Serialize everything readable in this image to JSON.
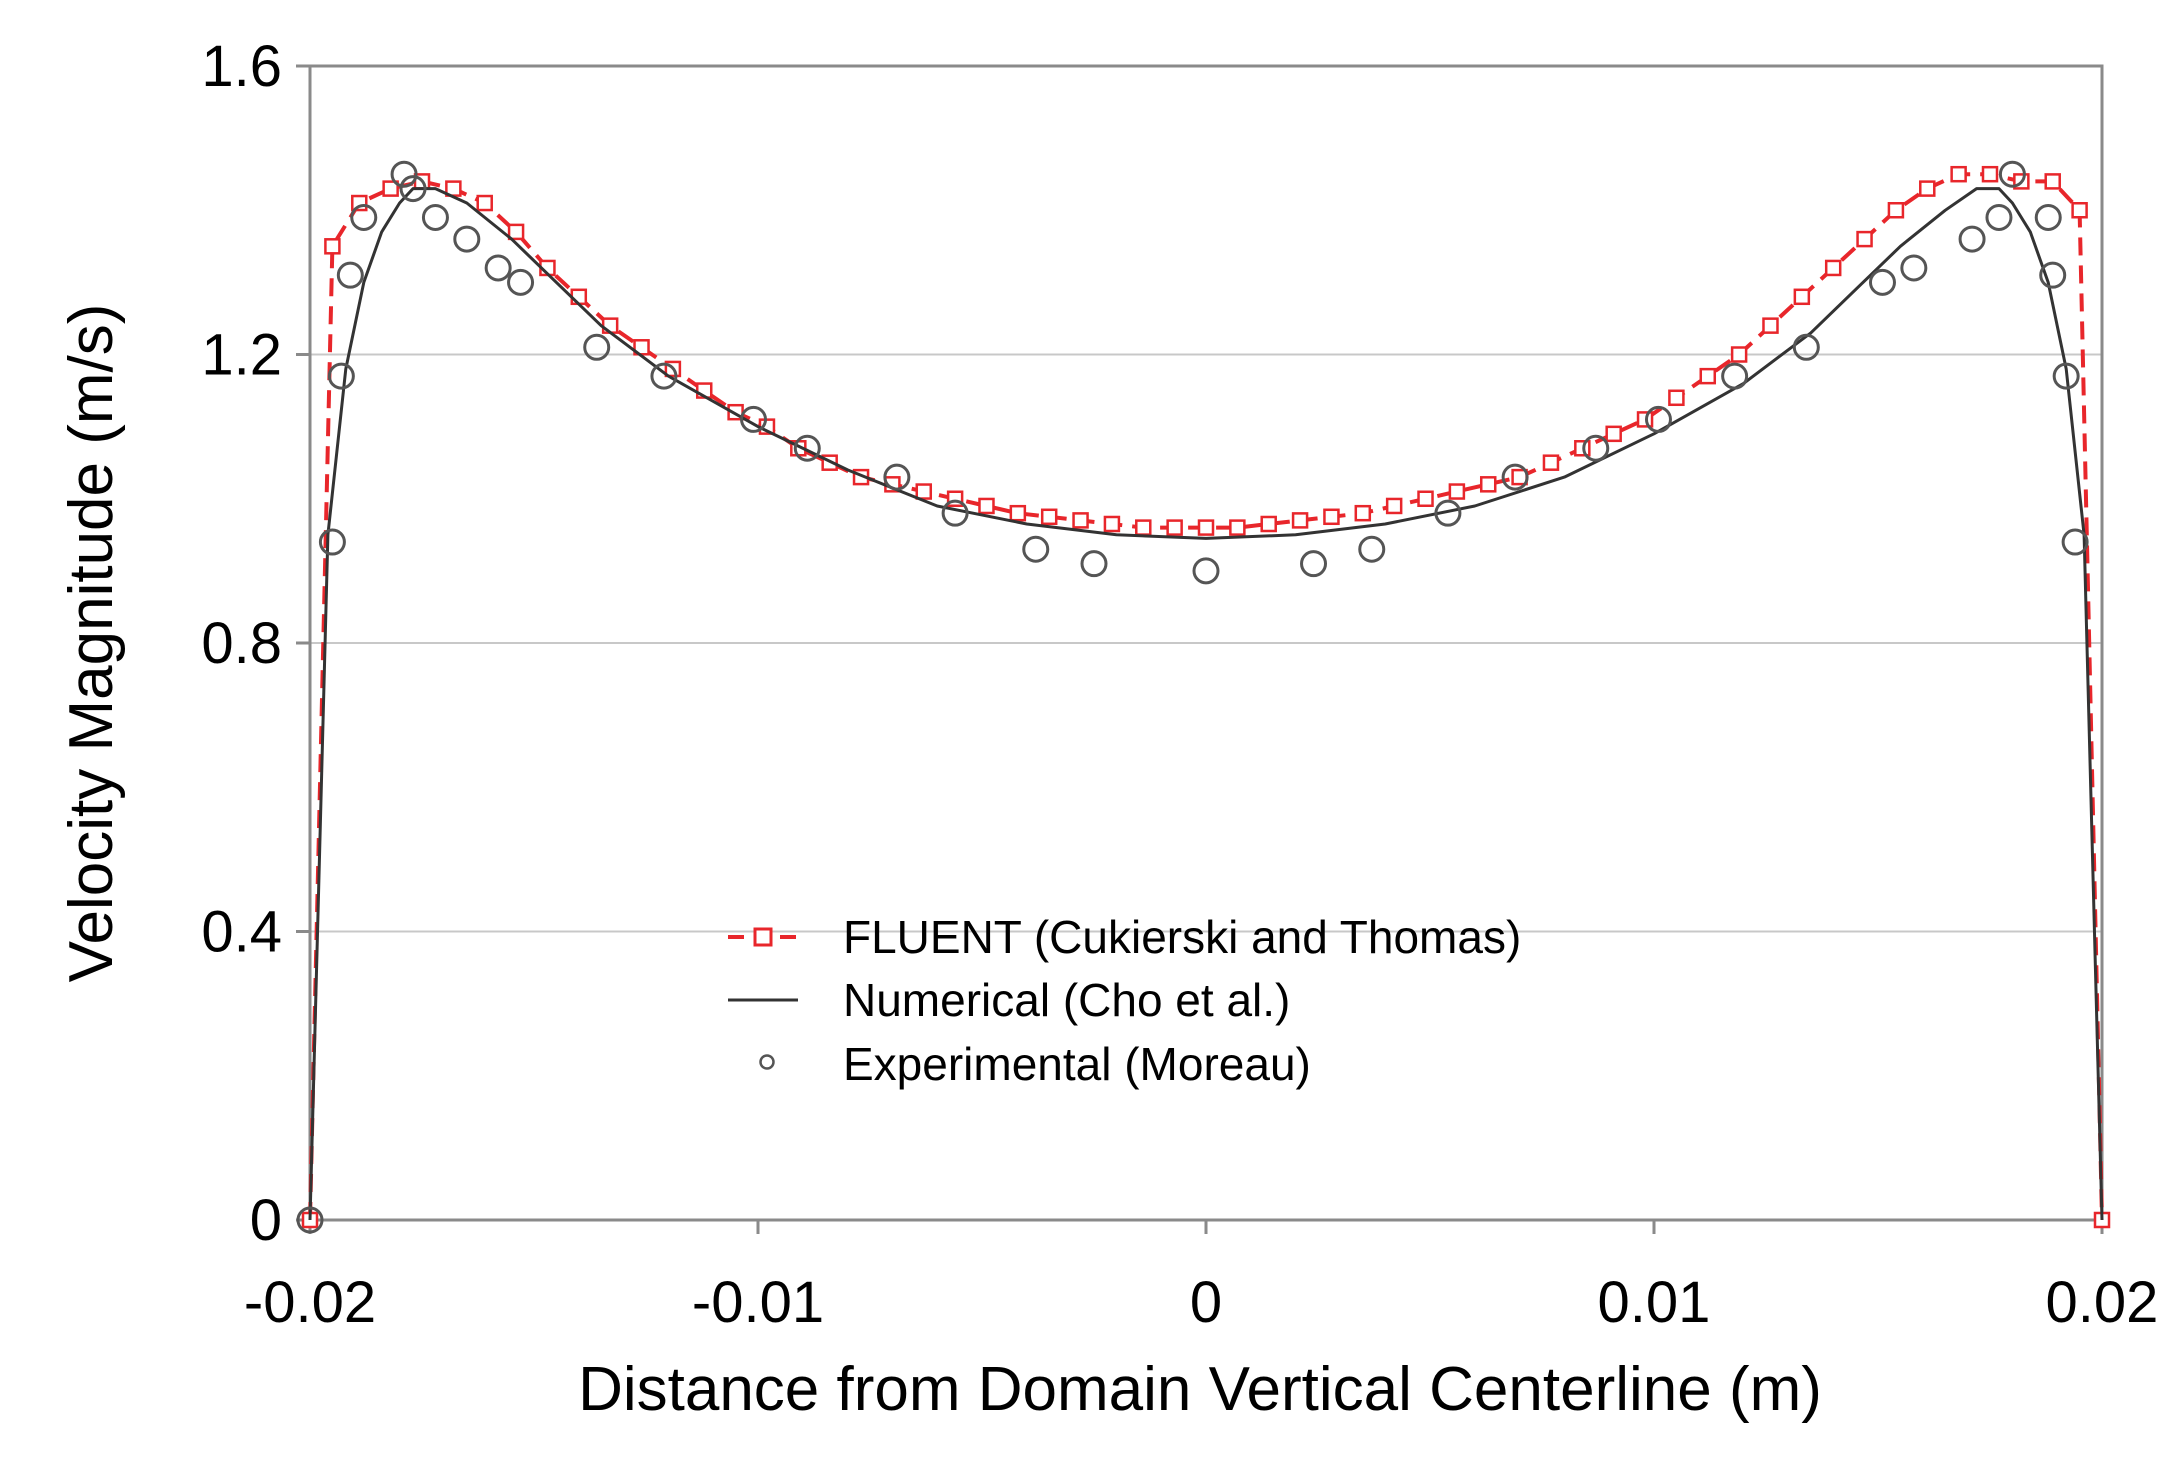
{
  "chart_data": {
    "type": "line",
    "title": "",
    "xlabel": "Distance from Domain Vertical Centerline (m)",
    "ylabel": "Velocity Magnitude (m/s)",
    "xlim": [
      -0.02,
      0.02
    ],
    "ylim": [
      0,
      1.6
    ],
    "x_ticks": [
      -0.02,
      -0.01,
      0,
      0.01,
      0.02
    ],
    "x_tick_labels": [
      "-0.02",
      "-0.01",
      "0",
      "0.01",
      "0.02"
    ],
    "y_ticks": [
      0,
      0.4,
      0.8,
      1.2,
      1.6
    ],
    "y_tick_labels": [
      "0",
      "0.4",
      "0.8",
      "1.2",
      "1.6"
    ],
    "grid": "horizontal",
    "legend_position": "center",
    "series": [
      {
        "name": "FLUENT (Cukierski and Thomas)",
        "style": "dashed-square-markers",
        "color": "#e8262b",
        "x": [
          -0.02,
          -0.0195,
          -0.0189,
          -0.0182,
          -0.0175,
          -0.0168,
          -0.0161,
          -0.0154,
          -0.0147,
          -0.014,
          -0.0133,
          -0.0126,
          -0.0119,
          -0.0112,
          -0.0105,
          -0.0098,
          -0.0091,
          -0.0084,
          -0.0077,
          -0.007,
          -0.0063,
          -0.0056,
          -0.0049,
          -0.0042,
          -0.0035,
          -0.0028,
          -0.0021,
          -0.0014,
          -0.0007,
          0,
          0.0007,
          0.0014,
          0.0021,
          0.0028,
          0.0035,
          0.0042,
          0.0049,
          0.0056,
          0.0063,
          0.007,
          0.0077,
          0.0084,
          0.0091,
          0.0098,
          0.0105,
          0.0112,
          0.0119,
          0.0126,
          0.0133,
          0.014,
          0.0147,
          0.0154,
          0.0161,
          0.0168,
          0.0175,
          0.0182,
          0.0189,
          0.0195,
          0.02
        ],
        "y": [
          0.0,
          1.35,
          1.41,
          1.43,
          1.44,
          1.43,
          1.41,
          1.37,
          1.32,
          1.28,
          1.24,
          1.21,
          1.18,
          1.15,
          1.12,
          1.1,
          1.07,
          1.05,
          1.03,
          1.02,
          1.01,
          1.0,
          0.99,
          0.98,
          0.975,
          0.97,
          0.965,
          0.96,
          0.96,
          0.96,
          0.96,
          0.965,
          0.97,
          0.975,
          0.98,
          0.99,
          1.0,
          1.01,
          1.02,
          1.03,
          1.05,
          1.07,
          1.09,
          1.11,
          1.14,
          1.17,
          1.2,
          1.24,
          1.28,
          1.32,
          1.36,
          1.4,
          1.43,
          1.45,
          1.45,
          1.44,
          1.44,
          1.4,
          0.0
        ]
      },
      {
        "name": "Numerical (Cho et al.)",
        "style": "solid",
        "color": "#333333",
        "x": [
          -0.02,
          -0.0196,
          -0.0192,
          -0.0188,
          -0.0184,
          -0.018,
          -0.0177,
          -0.0172,
          -0.0165,
          -0.0155,
          -0.0145,
          -0.0135,
          -0.012,
          -0.01,
          -0.008,
          -0.006,
          -0.004,
          -0.002,
          0,
          0.002,
          0.004,
          0.006,
          0.008,
          0.01,
          0.012,
          0.0135,
          0.0145,
          0.0155,
          0.0165,
          0.0172,
          0.0177,
          0.018,
          0.0184,
          0.0188,
          0.0192,
          0.0196,
          0.02
        ],
        "y": [
          0.0,
          0.95,
          1.18,
          1.3,
          1.37,
          1.41,
          1.43,
          1.43,
          1.41,
          1.36,
          1.3,
          1.24,
          1.17,
          1.1,
          1.04,
          0.99,
          0.965,
          0.95,
          0.945,
          0.95,
          0.965,
          0.99,
          1.03,
          1.09,
          1.16,
          1.23,
          1.29,
          1.35,
          1.4,
          1.43,
          1.43,
          1.41,
          1.37,
          1.3,
          1.18,
          0.95,
          0.0
        ]
      },
      {
        "name": "Experimental (Moreau)",
        "style": "open-circle-markers",
        "color": "#333333",
        "x": [
          -0.02,
          -0.0195,
          -0.0193,
          -0.0191,
          -0.0188,
          -0.0179,
          -0.0177,
          -0.0172,
          -0.0165,
          -0.0158,
          -0.0153,
          -0.0136,
          -0.0121,
          -0.0101,
          -0.0089,
          -0.0069,
          -0.0056,
          -0.0038,
          -0.0025,
          0,
          0.0024,
          0.0037,
          0.0054,
          0.0069,
          0.0087,
          0.0101,
          0.0118,
          0.0134,
          0.0151,
          0.0158,
          0.0171,
          0.0177,
          0.018,
          0.0188,
          0.0189,
          0.0192,
          0.0194
        ],
        "y": [
          0.0,
          0.94,
          1.17,
          1.31,
          1.39,
          1.45,
          1.43,
          1.39,
          1.36,
          1.32,
          1.3,
          1.21,
          1.17,
          1.11,
          1.07,
          1.03,
          0.98,
          0.93,
          0.91,
          0.9,
          0.91,
          0.93,
          0.98,
          1.03,
          1.07,
          1.11,
          1.17,
          1.21,
          1.3,
          1.32,
          1.36,
          1.39,
          1.45,
          1.39,
          1.31,
          1.17,
          0.94
        ]
      }
    ]
  }
}
